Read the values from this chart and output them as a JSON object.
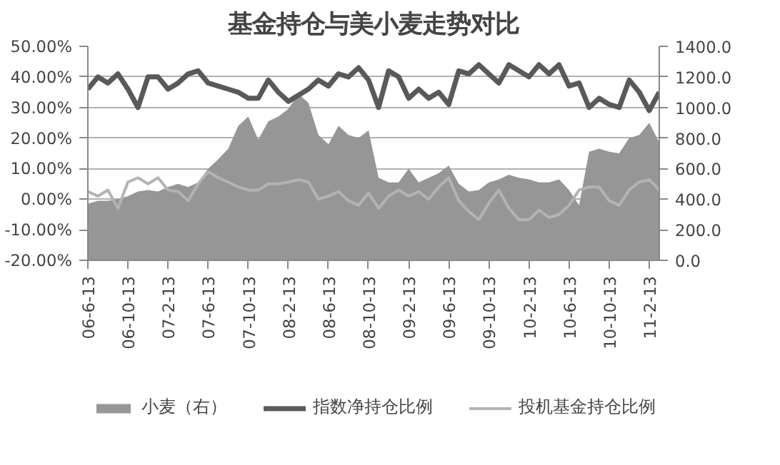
{
  "chart_data": {
    "type": "line",
    "title": "基金持仓与美小麦走势对比",
    "categories": [
      "06-6-13",
      null,
      null,
      null,
      "06-10-13",
      null,
      null,
      null,
      "07-2-13",
      null,
      null,
      null,
      "07-6-13",
      null,
      null,
      null,
      "07-10-13",
      null,
      null,
      null,
      "08-2-13",
      null,
      null,
      null,
      "08-6-13",
      null,
      null,
      null,
      "08-10-13",
      null,
      null,
      null,
      "09-2-13",
      null,
      null,
      null,
      "09-6-13",
      null,
      null,
      null,
      "09-10-13",
      null,
      null,
      null,
      "10-2-13",
      null,
      null,
      null,
      "10-6-13",
      null,
      null,
      null,
      "10-10-13",
      null,
      null,
      null,
      "11-2-13",
      null
    ],
    "series": [
      {
        "name": "小麦（右）",
        "type": "area",
        "axis": "y2",
        "color": "#969696",
        "values": [
          370,
          390,
          390,
          400,
          420,
          450,
          460,
          450,
          480,
          500,
          480,
          510,
          600,
          660,
          730,
          880,
          940,
          790,
          910,
          940,
          990,
          1090,
          1030,
          820,
          760,
          880,
          820,
          800,
          850,
          540,
          510,
          510,
          600,
          510,
          540,
          570,
          620,
          500,
          450,
          460,
          510,
          530,
          560,
          540,
          530,
          510,
          510,
          530,
          460,
          360,
          710,
          730,
          710,
          700,
          800,
          820,
          900,
          770
        ]
      },
      {
        "name": "指数净持仓比例",
        "color": "#595959",
        "values": [
          36,
          40,
          38,
          41,
          36,
          30,
          40,
          40,
          36,
          38,
          41,
          42,
          38,
          37,
          36,
          35,
          33,
          33,
          39,
          35,
          32,
          34,
          36,
          39,
          37,
          41,
          40,
          43,
          39,
          30,
          42,
          40,
          33,
          36,
          33,
          35,
          31,
          42,
          41,
          44,
          41,
          38,
          44,
          42,
          40,
          44,
          41,
          44,
          37,
          38,
          30,
          33,
          31,
          30,
          39,
          35,
          29,
          35
        ]
      },
      {
        "name": "投机基金持仓比例",
        "color": "#b3b3b3",
        "values": [
          2.5,
          1,
          3,
          -3,
          5.6,
          7,
          5,
          7,
          3,
          2.5,
          -0.5,
          5,
          9,
          7,
          5.6,
          4,
          3,
          3,
          5,
          5,
          5.6,
          6.4,
          5.6,
          0,
          1,
          2.5,
          -0.5,
          -2,
          2,
          -3,
          1,
          3,
          1,
          2.5,
          0,
          4,
          7,
          -0.5,
          -4,
          -6.7,
          -1.3,
          3,
          -3,
          -6.7,
          -6.7,
          -3.6,
          -6,
          -5,
          -2,
          3,
          4,
          4,
          -0.5,
          -2,
          3,
          5.6,
          6.4,
          3
        ]
      }
    ],
    "ylim": [
      -20,
      50
    ],
    "yticks": [
      {
        "value": -20,
        "label": "-20.00%"
      },
      {
        "value": -10,
        "label": "-10.00%"
      },
      {
        "value": 0,
        "label": "0.00%"
      },
      {
        "value": 10,
        "label": "10.00%"
      },
      {
        "value": 20,
        "label": "20.00%"
      },
      {
        "value": 30,
        "label": "30.00%"
      },
      {
        "value": 40,
        "label": "40.00%"
      },
      {
        "value": 50,
        "label": "50.00%"
      }
    ],
    "y2lim": [
      0,
      1400
    ],
    "y2ticks": [
      {
        "value": 0,
        "label": "0.0"
      },
      {
        "value": 200,
        "label": "200.0"
      },
      {
        "value": 400,
        "label": "400.0"
      },
      {
        "value": 600,
        "label": "600.0"
      },
      {
        "value": 800,
        "label": "800.0"
      },
      {
        "value": 1000,
        "label": "1000.0"
      },
      {
        "value": 1200,
        "label": "1200.0"
      },
      {
        "value": 1400,
        "label": "1400.0"
      }
    ],
    "grid": "y",
    "legend": "bottom"
  }
}
